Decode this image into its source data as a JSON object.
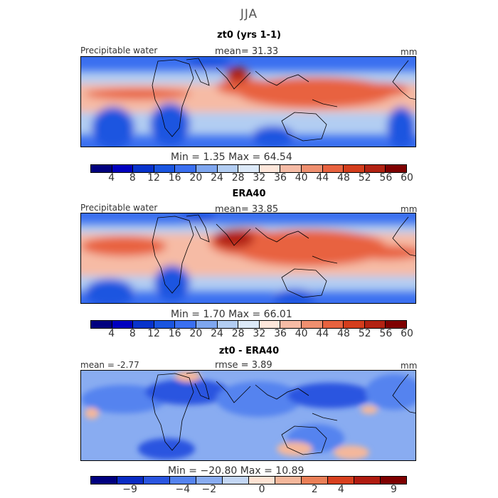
{
  "figure": {
    "season": "JJA",
    "panels": [
      {
        "title": "zt0 (yrs 1-1)",
        "left_label": "Precipitable water",
        "center_label": "mean=   31.33",
        "units": "mm",
        "minmax": "Min =    1.35  Max =   64.54"
      },
      {
        "title": "ERA40",
        "left_label": "Precipitable water",
        "center_label": "mean=   33.85",
        "units": "mm",
        "minmax": "Min =    1.70  Max =   66.01"
      },
      {
        "title": "zt0 - ERA40",
        "left_label": "mean =   -2.77",
        "center_label": "rmse =    3.89",
        "units": "mm",
        "minmax": "Min = −20.80  Max =   10.89"
      }
    ]
  },
  "colors": {
    "field_scale": [
      "#00007f",
      "#0000bf",
      "#0733cc",
      "#1a55e0",
      "#3a6ff0",
      "#7ea6ef",
      "#b2cdf2",
      "#dce9f8",
      "#fde6da",
      "#f6bba5",
      "#ef8f6f",
      "#e8623f",
      "#d43d1c",
      "#b22212",
      "#7f0000"
    ],
    "diff_scale": [
      "#00007f",
      "#0a2cc4",
      "#2a55e0",
      "#5583ef",
      "#89acf1",
      "#c3d6f4",
      "#fde2d3",
      "#f4b79b",
      "#ea7f57",
      "#d8401f",
      "#b01b10",
      "#7f0000"
    ]
  },
  "chart_data": [
    {
      "type": "heatmap",
      "title": "zt0 (yrs 1-1)",
      "field": "Precipitable water",
      "units": "mm",
      "mean": 31.33,
      "min": 1.35,
      "max": 64.54,
      "colorbar_levels": [
        4,
        8,
        12,
        16,
        20,
        24,
        28,
        32,
        36,
        40,
        44,
        48,
        52,
        56,
        60
      ],
      "colorbar_tick_labels": [
        "4",
        "8",
        "12",
        "16",
        "20",
        "24",
        "28",
        "32",
        "36",
        "40",
        "44",
        "48",
        "52",
        "56",
        "60"
      ]
    },
    {
      "type": "heatmap",
      "title": "ERA40",
      "field": "Precipitable water",
      "units": "mm",
      "mean": 33.85,
      "min": 1.7,
      "max": 66.01,
      "colorbar_levels": [
        4,
        8,
        12,
        16,
        20,
        24,
        28,
        32,
        36,
        40,
        44,
        48,
        52,
        56,
        60
      ],
      "colorbar_tick_labels": [
        "4",
        "8",
        "12",
        "16",
        "20",
        "24",
        "28",
        "32",
        "36",
        "40",
        "44",
        "48",
        "52",
        "56",
        "60"
      ]
    },
    {
      "type": "heatmap",
      "title": "zt0 - ERA40",
      "units": "mm",
      "mean": -2.77,
      "rmse": 3.89,
      "min": -20.8,
      "max": 10.89,
      "colorbar_levels": [
        -9,
        -4,
        -2,
        0,
        2,
        4,
        9
      ],
      "colorbar_tick_labels": [
        "−9",
        "−4",
        "−2",
        "0",
        "2",
        "4",
        "9"
      ]
    }
  ]
}
